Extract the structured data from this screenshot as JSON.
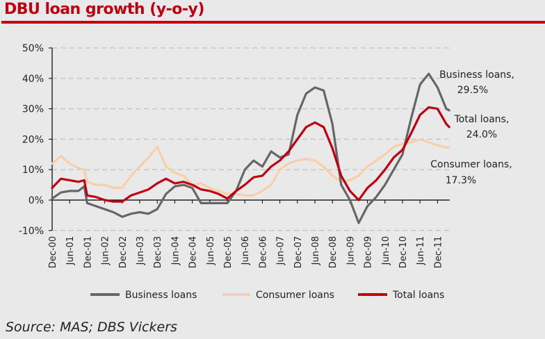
{
  "chart_data": {
    "type": "line",
    "title": "DBU loan growth (y-o-y)",
    "xlabel": "",
    "ylabel": "",
    "ylim": [
      -10,
      50
    ],
    "y_ticks": [
      "50%",
      "40%",
      "30%",
      "20%",
      "10%",
      "0%",
      "-10%"
    ],
    "y_tick_values": [
      50,
      40,
      30,
      20,
      10,
      0,
      -10
    ],
    "x_ticks": [
      "Dec-00",
      "Jun-01",
      "Dec-01",
      "Jun-02",
      "Dec-02",
      "Jun-03",
      "Dec-03",
      "Jun-04",
      "Dec-04",
      "Jun-05",
      "Dec-05",
      "Jun-06",
      "Dec-06",
      "Jun-07",
      "Dec-07",
      "Jun-08",
      "Dec-08",
      "Jun-09",
      "Dec-09",
      "Jun-10",
      "Dec-10",
      "Jun-11",
      "Dec-11"
    ],
    "x_month_index": [
      0,
      3,
      6,
      9,
      11,
      12,
      15,
      18,
      21,
      24,
      27,
      30,
      33,
      36,
      39,
      42,
      45,
      48,
      51,
      54,
      57,
      60,
      63,
      66,
      69,
      72,
      75,
      78,
      81,
      84,
      87,
      90,
      93,
      96,
      99,
      102,
      105,
      108,
      111,
      114,
      117,
      120,
      123,
      126,
      129,
      132,
      135,
      136
    ],
    "grid": "horizontal dashed",
    "legend_position": "bottom",
    "series": [
      {
        "name": "Business loans",
        "color": "#666666",
        "values": [
          0.5,
          2.5,
          3,
          3,
          4.5,
          -1,
          -2,
          -3,
          -4,
          -5.5,
          -4.5,
          -4,
          -4.5,
          -3,
          2,
          4.5,
          5,
          4,
          -1,
          -1,
          -1,
          -1,
          3,
          10,
          13,
          11,
          16,
          14,
          15,
          28,
          35,
          37,
          36,
          25,
          5,
          0,
          -7.5,
          -2,
          1,
          5,
          10,
          15,
          27,
          38,
          41.5,
          37,
          30,
          29.5
        ]
      },
      {
        "name": "Consumer loans",
        "color": "#f9cfa8",
        "values": [
          12,
          14.5,
          12,
          10.5,
          10,
          6,
          5,
          5,
          4,
          4,
          8,
          11,
          14,
          17.5,
          11,
          9,
          8,
          5,
          5.5,
          4,
          3,
          2,
          2,
          1.5,
          1.5,
          3,
          5,
          10,
          12,
          13,
          13.5,
          13,
          11,
          8,
          6,
          6.5,
          8,
          11,
          13,
          15,
          17.5,
          18.5,
          19,
          20,
          19,
          18,
          17.3,
          17.3
        ]
      },
      {
        "name": "Total loans",
        "color": "#c00010",
        "values": [
          4,
          7,
          6.5,
          6,
          6.5,
          1.5,
          1,
          0,
          -0.5,
          -0.5,
          1.5,
          2.5,
          3.5,
          5.5,
          7,
          5.5,
          6,
          5,
          3.5,
          3,
          2,
          0.5,
          3,
          5,
          7.5,
          8,
          11,
          13,
          16,
          20,
          24,
          25.5,
          24,
          17,
          8,
          3,
          0,
          4,
          6.5,
          10,
          14,
          16.5,
          22,
          28,
          30.5,
          30,
          25,
          24
        ]
      }
    ],
    "annotations": [
      {
        "series": "Business loans",
        "line1": "Business loans,",
        "line2": "29.5%"
      },
      {
        "series": "Total loans",
        "line1": "Total loans,",
        "line2": "24.0%"
      },
      {
        "series": "Consumer loans",
        "line1": "Consumer loans,",
        "line2": "17.3%"
      }
    ]
  },
  "source": "Source: MAS; DBS Vickers"
}
